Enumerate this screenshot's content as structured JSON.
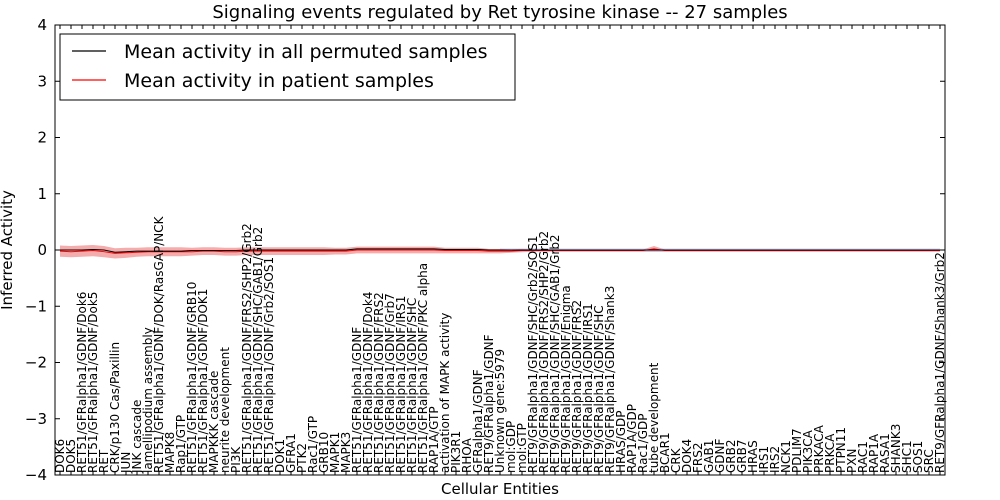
{
  "chart_data": {
    "type": "line",
    "title": "Signaling events regulated by Ret tyrosine kinase -- 27 samples",
    "xlabel": "Cellular Entities",
    "ylabel": "Inferred Activity",
    "ylim": [
      -4,
      4
    ],
    "yticks": [
      "4",
      "3",
      "2",
      "1",
      "0",
      "−1",
      "−2",
      "−3",
      "−4"
    ],
    "grid": false,
    "legend_position": "top-left",
    "colors": {
      "permuted": "#000000",
      "patient": "#ff0000",
      "band": "#f08080"
    },
    "categories": [
      "DOK6",
      "DOK5",
      "RET51/GFRalpha1/GDNF/Dok6",
      "RET51/GFRalpha1/GDNF/Dok5",
      "RET",
      "CRK/p130 Cas/Paxillin",
      "JUN",
      "JNK cascade",
      "lamellipodium assembly",
      "RET51/GFRalpha1/GDNF/DOK/RasGAP/NCK",
      "MAPK8",
      "Rap1/GTP",
      "RET51/GFRalpha1/GDNF/GRB10",
      "RET51/GFRalpha1/GDNF/DOK1",
      "MAPKKK cascade",
      "neurite development",
      "PI3K",
      "RET51/GFRalpha1/GDNF/FRS2/SHP2/Grb2",
      "RET51/GFRalpha1/GDNF/SHC/GAB1/Grb2",
      "RET51/GFRalpha1/GDNF/Grb2/SOS1",
      "DOK1",
      "GFRA1",
      "PTK2",
      "Rac1/GTP",
      "GRB10",
      "MAPK1",
      "MAPK3",
      "RET51/GFRalpha1/GDNF",
      "RET51/GFRalpha1/GDNF/Dok4",
      "RET51/GFRalpha1/GDNF/FRS2",
      "RET51/GFRalpha1/GDNF/Grb7",
      "RET51/GFRalpha1/GDNF/IRS1",
      "RET51/GFRalpha1/GDNF/SHC",
      "RET51/GFRalpha1/GDNF/PKC alpha",
      "RAP1A/GTP",
      "activation of MAPK activity",
      "PIK3R1",
      "RHOA",
      "GFRalpha1/GDNF",
      "RET9/GFRalpha1/GDNF",
      "Unknown gene:5979",
      "mol:GDP",
      "mol:GTP",
      "RET9/GFRalpha1/GDNF/SHC/Grb2/SOS1",
      "RET9/GFRalpha1/GDNF/FRS2/SHP2/Grb2",
      "RET9/GFRalpha1/GDNF/SHC/GAB1/Grb2",
      "RET9/GFRalpha1/GDNF/Enigma",
      "RET9/GFRalpha1/GDNF/FRS2",
      "RET9/GFRalpha1/GDNF/IRS1",
      "RET9/GFRalpha1/GDNF/SHC",
      "RET9/GFRalpha1/GDNF/Shank3",
      "HRAS/GDP",
      "RAP1A/GDP",
      "Rac1/GDP",
      "tube development",
      "BCAR1",
      "CRK",
      "DOK4",
      "FRS2",
      "GAB1",
      "GDNF",
      "GRB2",
      "GRB7",
      "HRAS",
      "IRS1",
      "IRS2",
      "NCK1",
      "PDLIM7",
      "PIK3CA",
      "PRKACA",
      "PRKCA",
      "PTPN11",
      "PXN",
      "RAC1",
      "RAP1A",
      "RASA1",
      "SHANK3",
      "SHC1",
      "SOS1",
      "SRC",
      "RET9/GFRalpha1/GDNF/Shank3/Grb2"
    ],
    "series": [
      {
        "name": "Mean activity in all permuted samples",
        "values": [
          0.0,
          0.0,
          0.0,
          0.01,
          0.0,
          -0.04,
          -0.03,
          -0.02,
          -0.02,
          -0.02,
          -0.02,
          -0.02,
          -0.01,
          -0.01,
          -0.01,
          -0.01,
          -0.01,
          0.0,
          0.0,
          0.0,
          0.0,
          0.0,
          0.0,
          0.0,
          0.0,
          0.0,
          0.0,
          0.02,
          0.02,
          0.02,
          0.02,
          0.02,
          0.02,
          0.02,
          0.02,
          0.01,
          0.01,
          0.01,
          0.01,
          0.0,
          0.0,
          0.0,
          0.0,
          0.0,
          0.0,
          0.0,
          0.0,
          0.0,
          0.0,
          0.0,
          0.0,
          0.0,
          0.0,
          0.0,
          0.0,
          0.0,
          0.0,
          0.0,
          0.0,
          0.0,
          0.0,
          0.0,
          0.0,
          0.0,
          0.0,
          0.0,
          0.0,
          0.0,
          0.0,
          0.0,
          0.0,
          0.0,
          0.0,
          0.0,
          0.0,
          0.0,
          0.0,
          0.0,
          0.0,
          0.0,
          0.0
        ]
      },
      {
        "name": "Mean activity in patient samples",
        "values": [
          -0.02,
          -0.03,
          -0.02,
          -0.01,
          -0.03,
          -0.06,
          -0.05,
          -0.04,
          -0.03,
          -0.03,
          -0.03,
          -0.03,
          -0.03,
          -0.02,
          -0.02,
          -0.03,
          -0.03,
          -0.02,
          -0.02,
          -0.02,
          -0.02,
          -0.02,
          -0.02,
          -0.02,
          -0.02,
          -0.02,
          -0.02,
          0.0,
          0.0,
          0.0,
          0.0,
          0.0,
          0.0,
          0.0,
          0.0,
          -0.01,
          -0.01,
          -0.01,
          -0.01,
          -0.02,
          -0.02,
          -0.02,
          -0.01,
          -0.01,
          -0.01,
          -0.01,
          -0.01,
          -0.01,
          -0.01,
          -0.01,
          -0.01,
          -0.01,
          -0.01,
          -0.01,
          0.02,
          -0.01,
          -0.01,
          -0.01,
          -0.01,
          -0.01,
          -0.01,
          -0.01,
          -0.01,
          -0.01,
          -0.01,
          -0.01,
          -0.01,
          -0.01,
          -0.01,
          -0.01,
          -0.01,
          -0.01,
          -0.01,
          -0.01,
          -0.01,
          -0.01,
          -0.01,
          -0.01,
          -0.01,
          -0.01,
          -0.01
        ]
      }
    ],
    "band_halfwidth": [
      0.1,
      0.1,
      0.1,
      0.1,
      0.1,
      0.09,
      0.09,
      0.08,
      0.08,
      0.08,
      0.08,
      0.08,
      0.07,
      0.07,
      0.07,
      0.07,
      0.07,
      0.07,
      0.07,
      0.07,
      0.07,
      0.07,
      0.07,
      0.07,
      0.07,
      0.06,
      0.06,
      0.06,
      0.06,
      0.06,
      0.06,
      0.06,
      0.06,
      0.06,
      0.06,
      0.05,
      0.05,
      0.05,
      0.05,
      0.04,
      0.04,
      0.03,
      0.03,
      0.02,
      0.02,
      0.02,
      0.02,
      0.02,
      0.02,
      0.02,
      0.02,
      0.02,
      0.02,
      0.02,
      0.05,
      0.02,
      0.02,
      0.02,
      0.02,
      0.02,
      0.02,
      0.02,
      0.02,
      0.02,
      0.02,
      0.02,
      0.02,
      0.02,
      0.02,
      0.02,
      0.02,
      0.02,
      0.02,
      0.02,
      0.02,
      0.02,
      0.02,
      0.02,
      0.02,
      0.02,
      0.02
    ]
  }
}
